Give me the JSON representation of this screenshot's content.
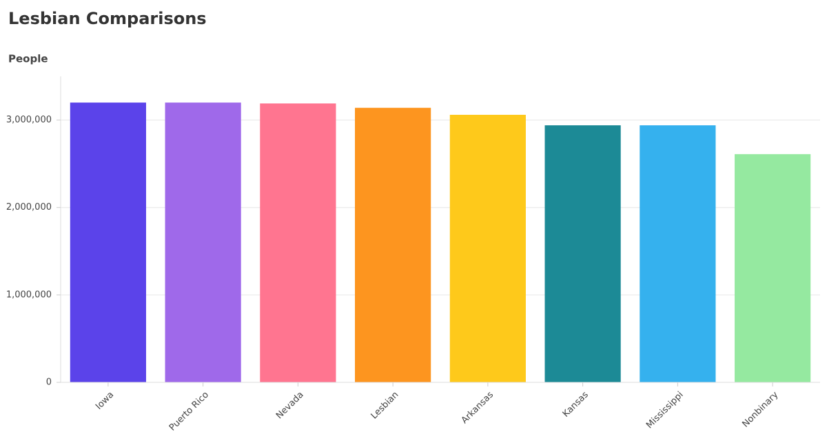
{
  "chart_data": {
    "type": "bar",
    "title": "Lesbian Comparisons",
    "y_label": "People",
    "categories": [
      "Iowa",
      "Puerto Rico",
      "Nevada",
      "Lesbian",
      "Arkansas",
      "Kansas",
      "Mississippi",
      "Nonbinary"
    ],
    "values": [
      3200000,
      3200000,
      3190000,
      3140000,
      3060000,
      2940000,
      2940000,
      2610000
    ],
    "colors": [
      "#5b43ea",
      "#9f69ea",
      "#ff7590",
      "#fd951f",
      "#fec91b",
      "#1c8a96",
      "#35b1ee",
      "#95e9a0"
    ],
    "ylim": [
      0,
      3500000
    ],
    "yticks": [
      0,
      {
        "value": 1000000,
        "label": "1,000,000"
      },
      {
        "value": 2000000,
        "label": "2,000,000"
      },
      {
        "value": 3000000,
        "label": "3,000,000"
      }
    ],
    "grid": true
  }
}
